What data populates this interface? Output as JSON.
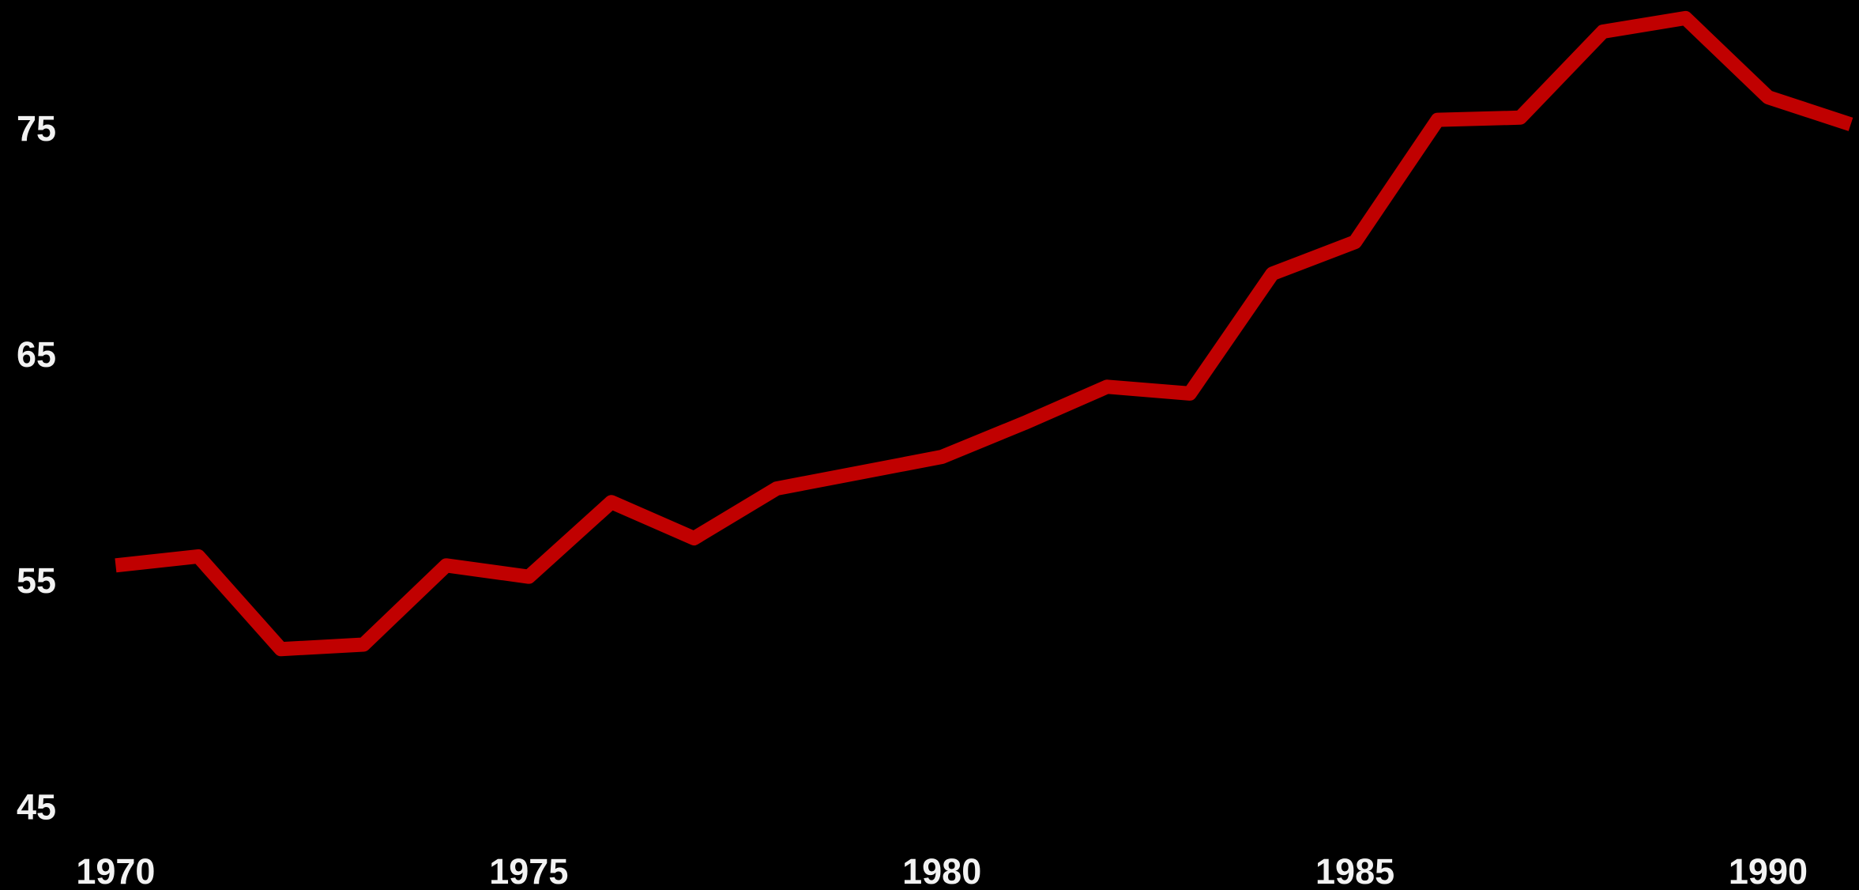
{
  "chart_data": {
    "type": "line",
    "x": [
      1970,
      1971,
      1972,
      1973,
      1974,
      1975,
      1976,
      1977,
      1978,
      1979,
      1980,
      1981,
      1982,
      1983,
      1984,
      1985,
      1986,
      1987,
      1988,
      1989,
      1990,
      1991
    ],
    "series": [
      {
        "color": "#c00000",
        "values": [
          55.8,
          56.2,
          52.1,
          52.3,
          55.8,
          55.3,
          58.6,
          57.0,
          59.2,
          59.9,
          60.6,
          62.1,
          63.7,
          63.4,
          68.7,
          70.1,
          75.5,
          75.6,
          79.4,
          80.0,
          76.5,
          75.3
        ]
      }
    ],
    "xlim": [
      1968.6,
      1991.1
    ],
    "xticks": [
      1970,
      1975,
      1980,
      1985,
      1990
    ],
    "ylim": [
      44,
      80.8
    ],
    "yticks": [
      45,
      55,
      65,
      75
    ],
    "grid": false
  }
}
